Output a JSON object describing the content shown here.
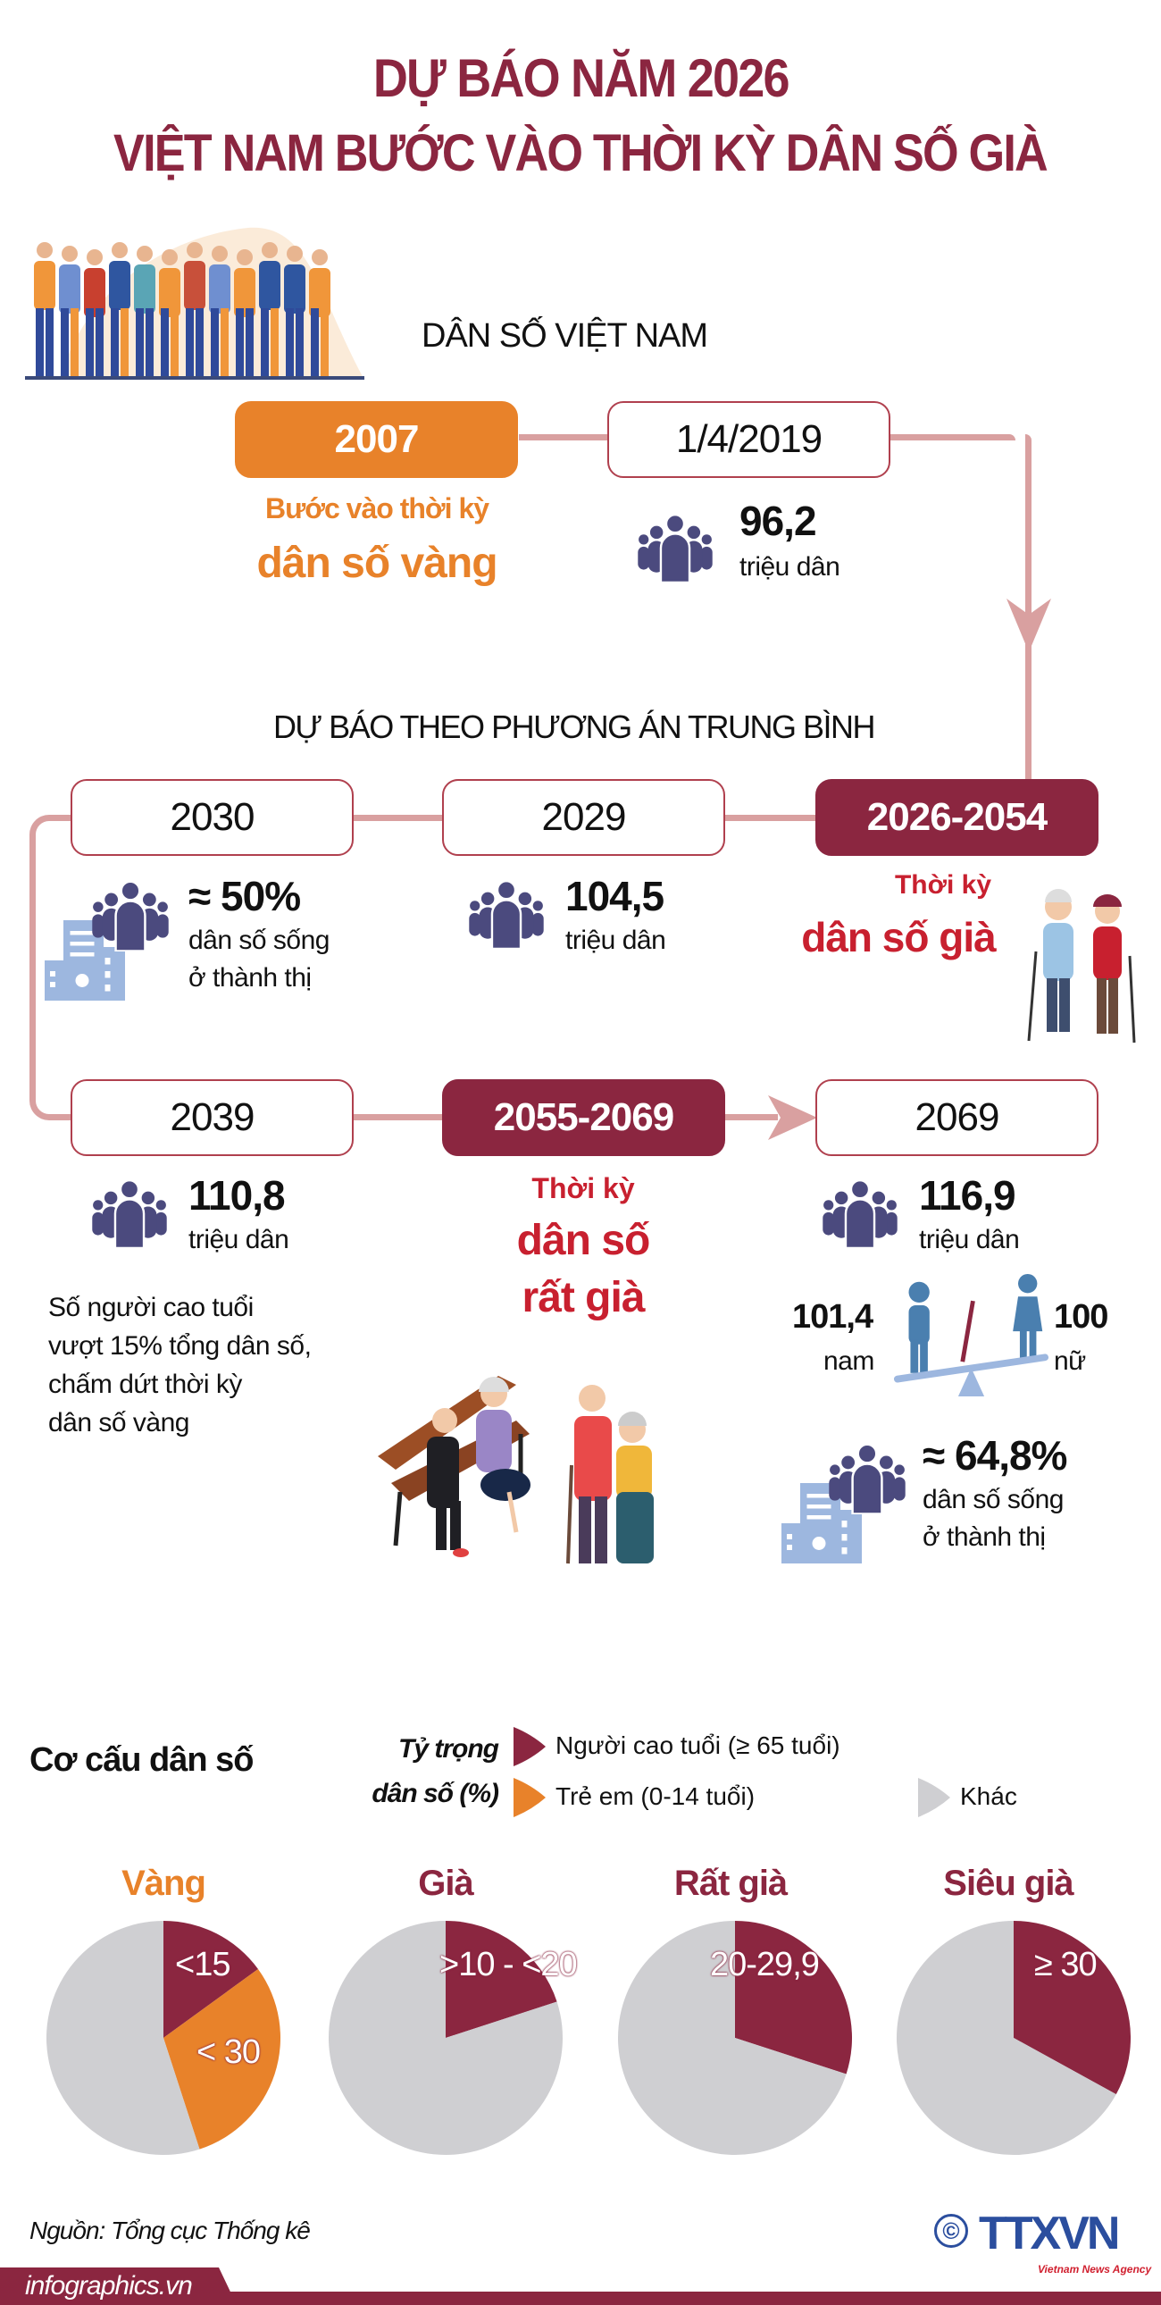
{
  "header": {
    "title_line1": "DỰ BÁO NĂM 2026",
    "title_line2": "VIỆT NAM BƯỚC VÀO THỜI KỲ DÂN SỐ GIÀ"
  },
  "section1": {
    "heading": "DÂN SỐ VIỆT NAM",
    "y2007": {
      "label": "2007",
      "line1": "Bước vào thời kỳ",
      "line2": "dân số vàng"
    },
    "y2019": {
      "label": "1/4/2019",
      "value": "96,2",
      "unit": "triệu dân"
    }
  },
  "section2": {
    "heading": "DỰ BÁO THEO PHƯƠNG ÁN TRUNG BÌNH",
    "y2030": {
      "label": "2030",
      "value": "≈ 50%",
      "line1": "dân số sống",
      "line2": "ở thành thị"
    },
    "y2029": {
      "label": "2029",
      "value": "104,5",
      "unit": "triệu dân"
    },
    "p2026": {
      "label": "2026-2054",
      "line1": "Thời kỳ",
      "line2": "dân số già"
    },
    "y2039": {
      "label": "2039",
      "value": "110,8",
      "unit": "triệu dân",
      "note": [
        "Số người cao tuổi",
        "vượt 15% tổng dân số,",
        "chấm dứt thời kỳ",
        "dân số vàng"
      ]
    },
    "p2055": {
      "label": "2055-2069",
      "line1": "Thời kỳ",
      "line2": "dân số",
      "line3": "rất già"
    },
    "y2069": {
      "label": "2069",
      "value": "116,9",
      "unit": "triệu dân",
      "male_value": "101,4",
      "male_label": "nam",
      "female_value": "100",
      "female_label": "nữ",
      "urban_value": "≈ 64,8%",
      "urban_line1": "dân số sống",
      "urban_line2": "ở thành thị"
    }
  },
  "structure": {
    "heading": "Cơ cấu dân số",
    "legend_title1": "Tỷ trọng",
    "legend_title2": "dân số (%)"
  },
  "chart_data": {
    "type": "pie",
    "legend": [
      {
        "name": "Người cao tuổi (≥ 65 tuổi)",
        "color": "#8B2640"
      },
      {
        "name": "Trẻ em (0-14 tuổi)",
        "color": "#E8822A"
      },
      {
        "name": "Khác",
        "color": "#CFCFD2"
      }
    ],
    "pies": [
      {
        "title": "Vàng",
        "title_color": "#E8822A",
        "slices": [
          {
            "series": "Người cao tuổi (≥ 65 tuổi)",
            "value": 15,
            "label": "<15"
          },
          {
            "series": "Trẻ em (0-14 tuổi)",
            "value": 30,
            "label": "< 30"
          },
          {
            "series": "Khác",
            "value": 55
          }
        ]
      },
      {
        "title": "Già",
        "title_color": "#8B2640",
        "slices": [
          {
            "series": "Người cao tuổi (≥ 65 tuổi)",
            "value": 20,
            "label": ">10 - <20"
          },
          {
            "series": "Khác",
            "value": 80
          }
        ]
      },
      {
        "title": "Rất già",
        "title_color": "#8B2640",
        "slices": [
          {
            "series": "Người cao tuổi (≥ 65 tuổi)",
            "value": 30,
            "label": "20-29,9"
          },
          {
            "series": "Khác",
            "value": 70
          }
        ]
      },
      {
        "title": "Siêu già",
        "title_color": "#8B2640",
        "slices": [
          {
            "series": "Người cao tuổi (≥ 65 tuổi)",
            "value": 33,
            "label": "≥ 30"
          },
          {
            "series": "Khác",
            "value": 67
          }
        ]
      }
    ]
  },
  "footer": {
    "source": "Nguồn: Tổng cục Thống kê",
    "site": "infographics.vn",
    "logo_text": "TTXVN",
    "logo_sub": "Vietnam News Agency",
    "copyright": "©"
  },
  "colors": {
    "brand": "#8B2640",
    "orange": "#E8822A",
    "red": "#C8202F",
    "line": "#D9A0A0",
    "people_icon": "#4B4A7E",
    "building": "#9DB7DF"
  }
}
